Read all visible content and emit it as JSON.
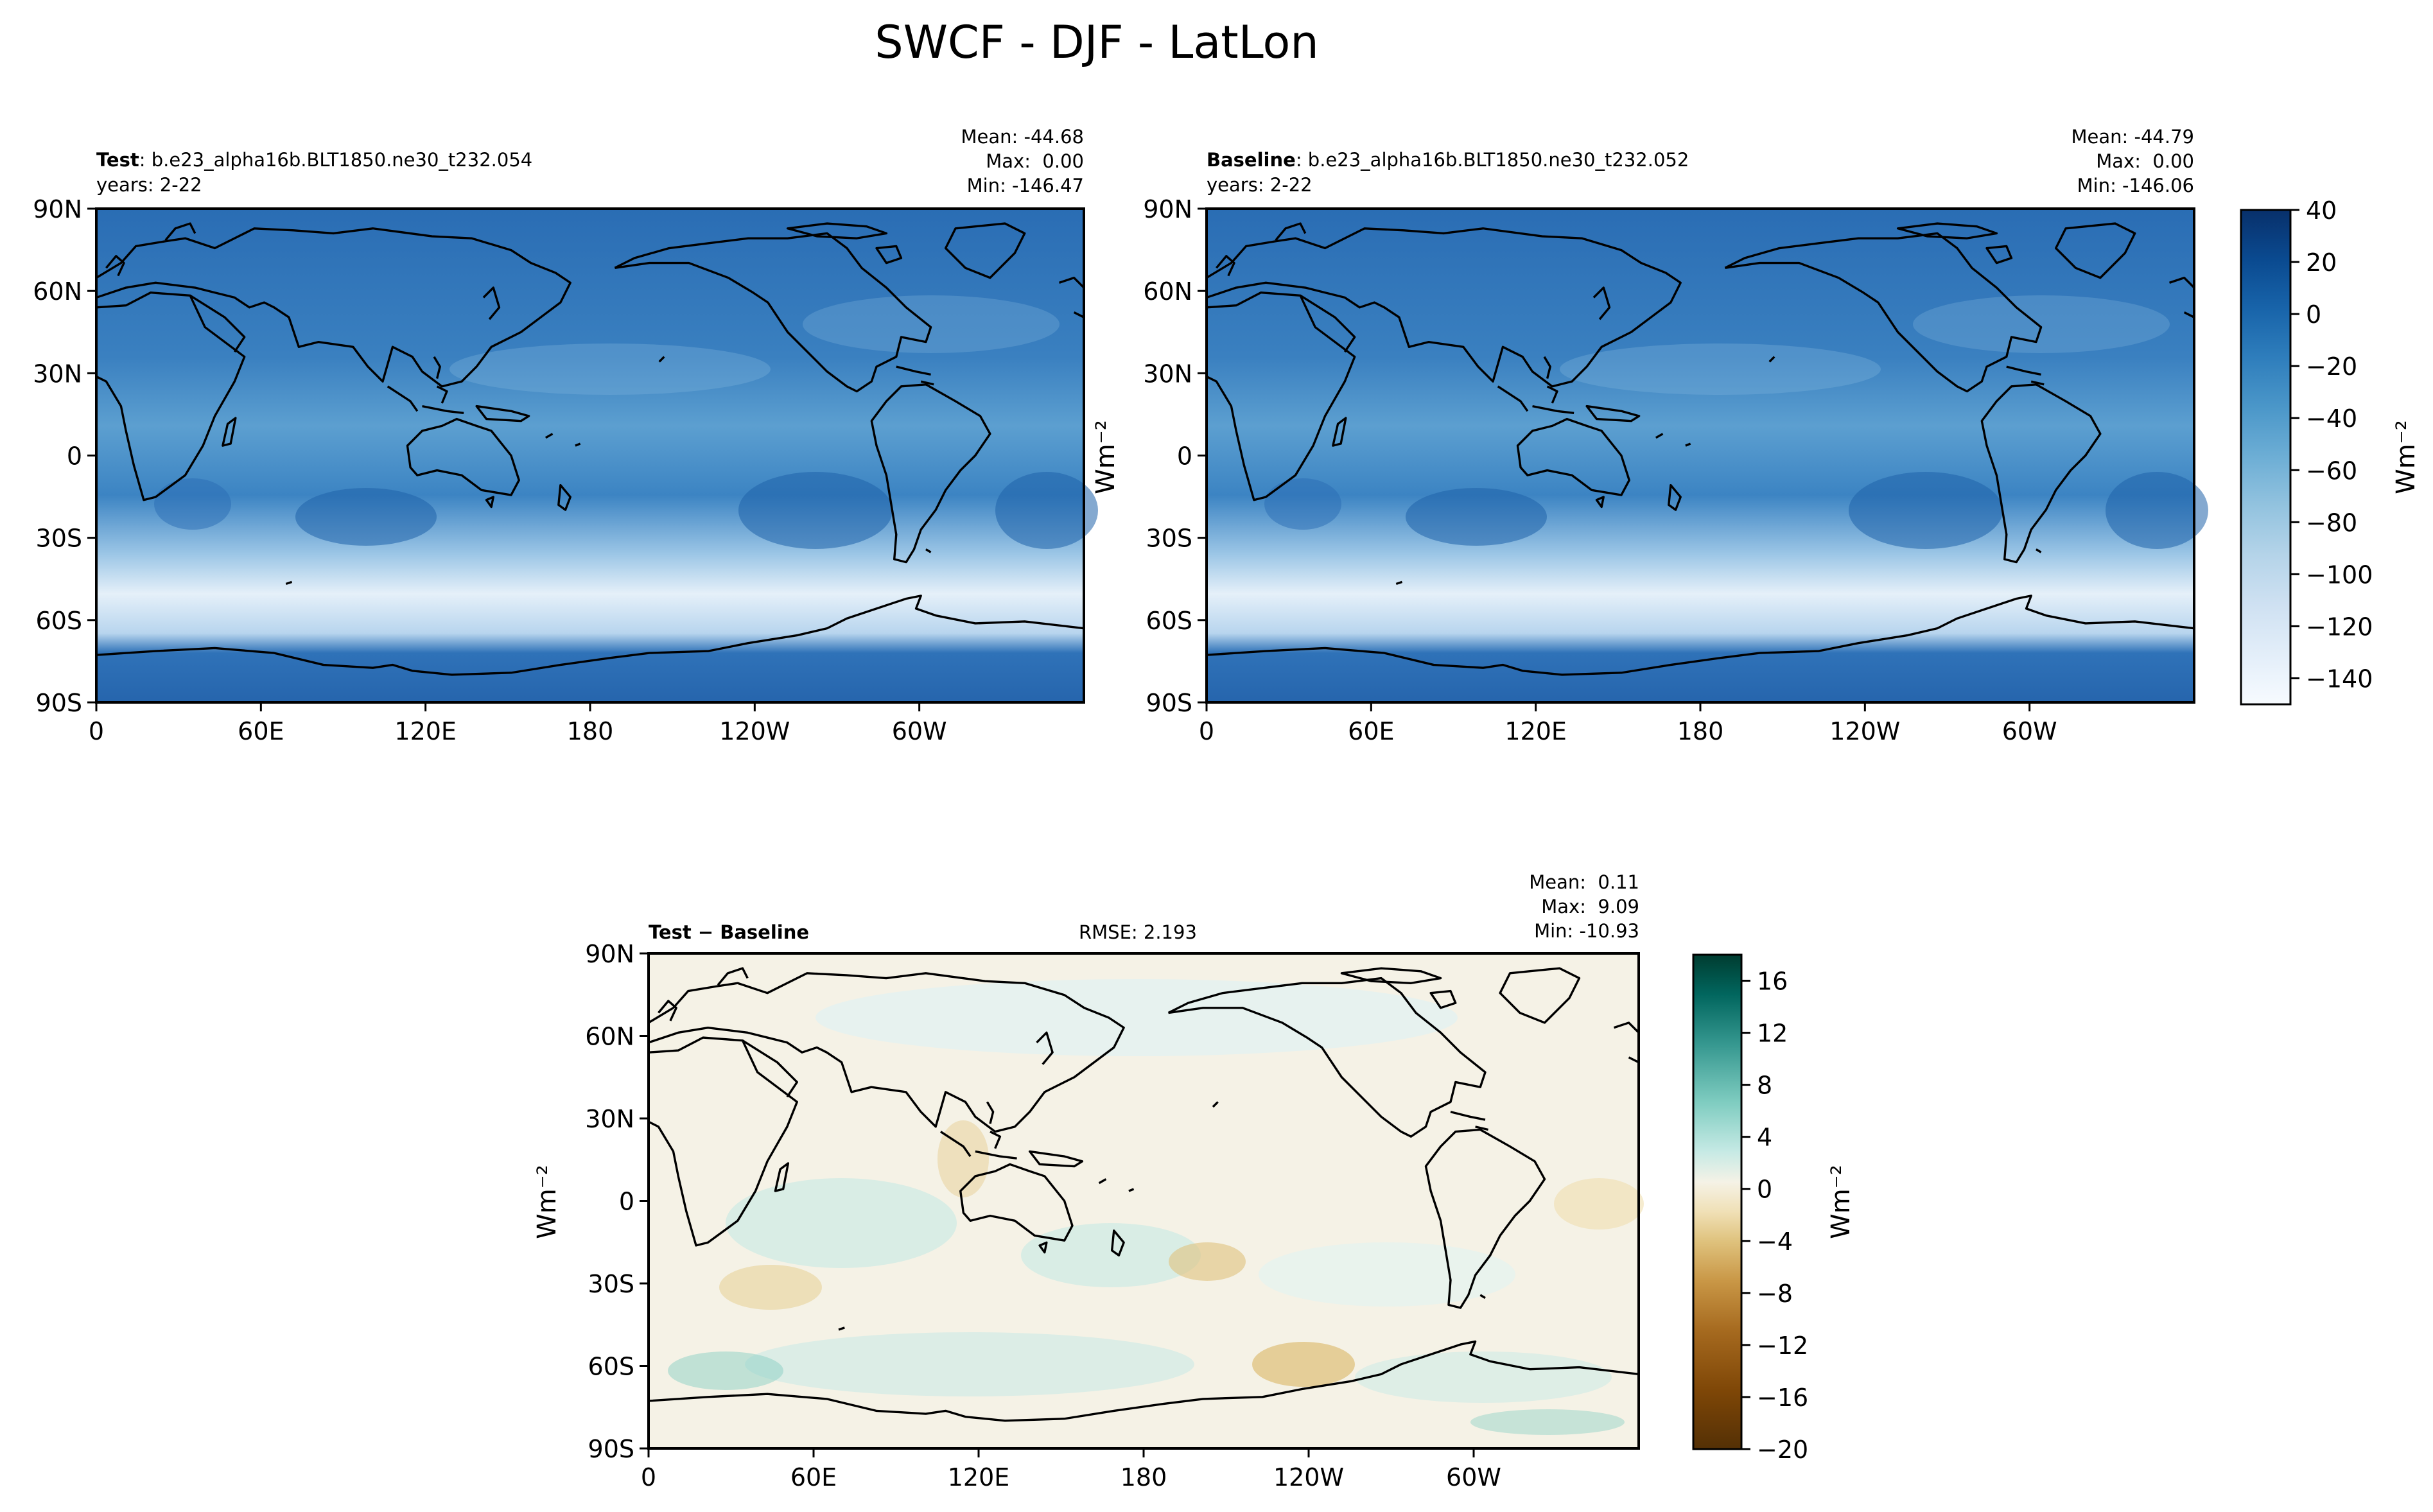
{
  "figure": {
    "title": "SWCF - DJF - LatLon"
  },
  "panels": [
    {
      "id": "test",
      "label_bold": "Test",
      "label_rest": ": b.e23_alpha16b.BLT1850.ne30_t232.054",
      "years": "years: 2-22",
      "stats": [
        "Mean: -44.68",
        "Max:  0.00",
        "Min: -146.47"
      ]
    },
    {
      "id": "baseline",
      "label_bold": "Baseline",
      "label_rest": ": b.e23_alpha16b.BLT1850.ne30_t232.052",
      "years": "years: 2-22",
      "stats": [
        "Mean: -44.79",
        "Max:  0.00",
        "Min: -146.06"
      ]
    },
    {
      "id": "diff",
      "label_bold": "Test − Baseline",
      "rmse": "RMSE: 2.193",
      "stats": [
        "Mean:  0.11",
        "Max:  9.09",
        "Min: -10.93"
      ]
    }
  ],
  "axes": {
    "lat_ticks": [
      "90N",
      "60N",
      "30N",
      "0",
      "30S",
      "60S",
      "90S"
    ],
    "lon_ticks": [
      "0",
      "60E",
      "120E",
      "180",
      "120W",
      "60W"
    ]
  },
  "colorbars": [
    {
      "id": "main",
      "label": "Wm⁻²",
      "ticks": [
        "40",
        "20",
        "0",
        "−20",
        "−40",
        "−60",
        "−80",
        "−100",
        "−120",
        "−140"
      ],
      "range": [
        -150,
        40
      ],
      "colors": [
        "#f7fbff",
        "#e3eef9",
        "#cfe1f2",
        "#b5d4e9",
        "#93c3df",
        "#6daed5",
        "#4b97c9",
        "#2f7ebc",
        "#1864aa",
        "#0a4a90",
        "#08306b"
      ]
    },
    {
      "id": "diff",
      "label": "Wm⁻²",
      "ticks": [
        "16",
        "12",
        "8",
        "4",
        "0",
        "−4",
        "−8",
        "−12",
        "−16",
        "−20"
      ],
      "range": [
        -20,
        18
      ],
      "colors": [
        "#543005",
        "#7f4707",
        "#a66a1f",
        "#c99746",
        "#dfc27d",
        "#f0e0b6",
        "#f5f2e6",
        "#e6f2ef",
        "#c7eae5",
        "#80cdc1",
        "#35978f",
        "#01665e",
        "#003c30"
      ]
    }
  ],
  "colors": {
    "ocean_main": "#2e73b8",
    "land_main": "#2465ad",
    "storm_track": "#dce9f5",
    "diff_background": "#f5f2e6",
    "coastline": "#000000"
  }
}
